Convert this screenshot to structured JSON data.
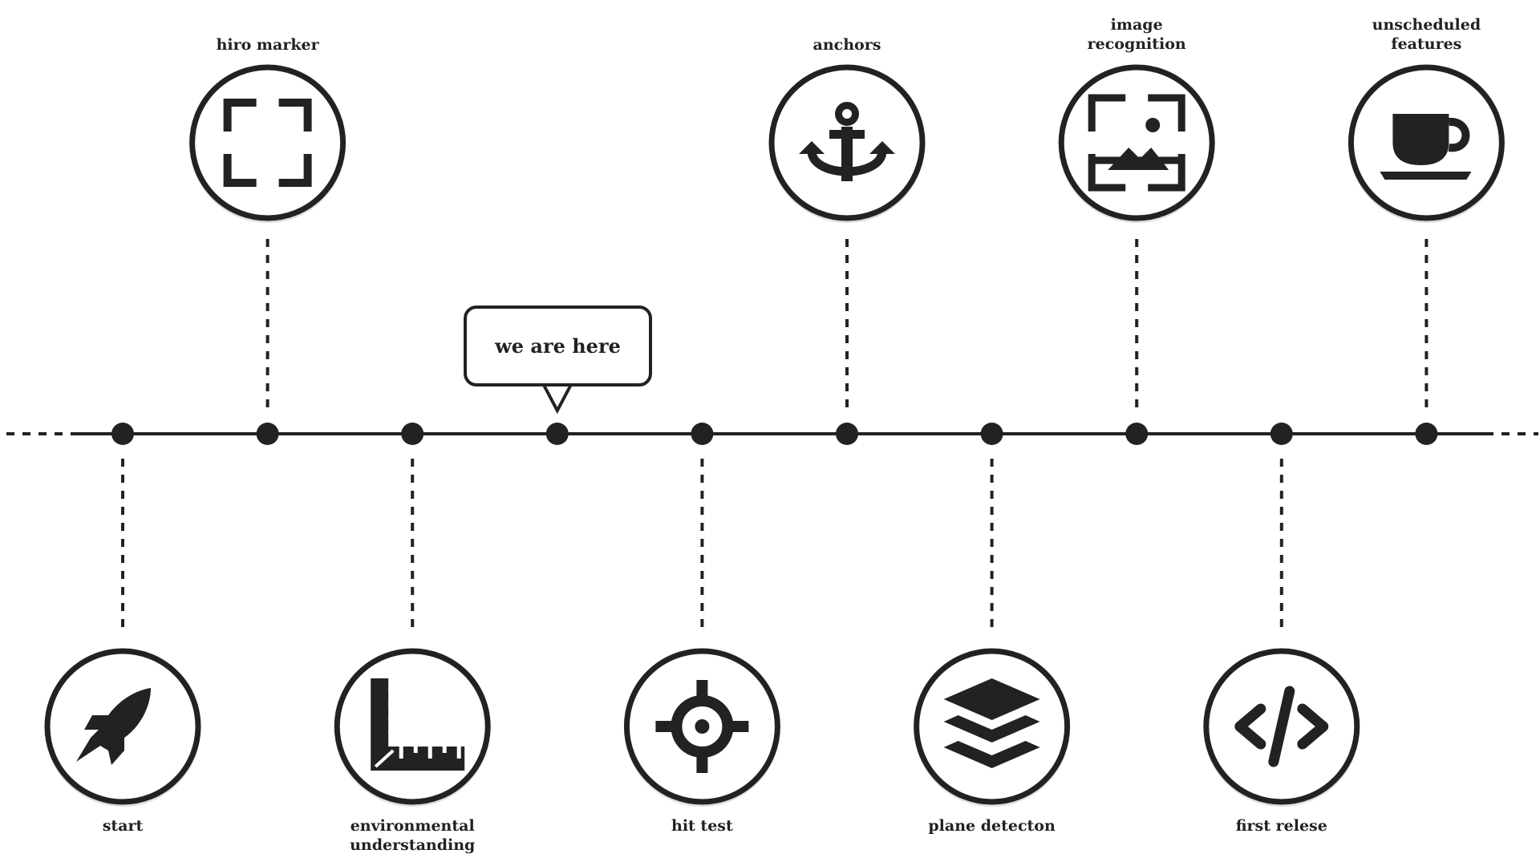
{
  "colors": {
    "ink": "#222222",
    "background": "#ffffff"
  },
  "callout": {
    "text": "we are here"
  },
  "milestones": [
    {
      "name": "start",
      "label_lines": [
        "start"
      ],
      "icon": "rocket-icon",
      "side": "bottom"
    },
    {
      "name": "hiro-marker",
      "label_lines": [
        "hiro marker"
      ],
      "icon": "marker-frame-icon",
      "side": "top"
    },
    {
      "name": "environmental-understanding",
      "label_lines": [
        "environmental",
        "understanding"
      ],
      "icon": "ruler-icon",
      "side": "bottom"
    },
    {
      "name": "current-position",
      "label_lines": [],
      "icon": "",
      "side": "none"
    },
    {
      "name": "hit-test",
      "label_lines": [
        "hit test"
      ],
      "icon": "crosshair-icon",
      "side": "bottom"
    },
    {
      "name": "anchors",
      "label_lines": [
        "anchors"
      ],
      "icon": "anchor-icon",
      "side": "top"
    },
    {
      "name": "plane-detecton",
      "label_lines": [
        "plane detecton"
      ],
      "icon": "layers-icon",
      "side": "bottom"
    },
    {
      "name": "image-recognition",
      "label_lines": [
        "image",
        "recognition"
      ],
      "icon": "image-frame-icon",
      "side": "top"
    },
    {
      "name": "first-relese",
      "label_lines": [
        "first relese"
      ],
      "icon": "code-icon",
      "side": "bottom"
    },
    {
      "name": "unscheduled-features",
      "label_lines": [
        "unscheduled",
        "features"
      ],
      "icon": "coffee-cup-icon",
      "side": "top"
    }
  ]
}
